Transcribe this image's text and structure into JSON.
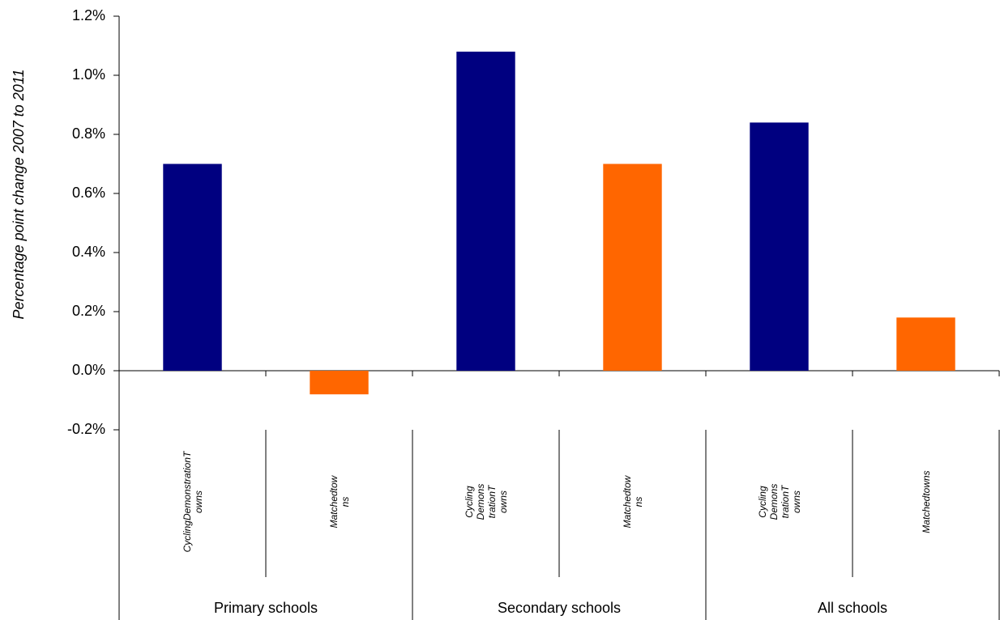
{
  "chart_data": {
    "type": "bar",
    "y_label": "Percentage point change 2007 to 2011",
    "groups": [
      "Primary schools",
      "Secondary schools",
      "All schools"
    ],
    "categories": [
      "CyclingDemonstrationTowns",
      "Matchedtowns",
      "CyclingDemonstrationTowns",
      "Matchedtowns",
      "CyclingDemonstrationTowns",
      "Matchedtowns"
    ],
    "values": [
      0.7,
      -0.08,
      1.08,
      0.7,
      0.84,
      0.18
    ],
    "colors": [
      "#000080",
      "#ff6600",
      "#000080",
      "#ff6600",
      "#000080",
      "#ff6600"
    ],
    "ylim": [
      -0.2,
      1.2
    ],
    "yticks": [
      {
        "value": -0.2,
        "label": "-0.2%"
      },
      {
        "value": 0,
        "label": "0.0%"
      },
      {
        "value": 0.2,
        "label": "0.2%"
      },
      {
        "value": 0.4,
        "label": "0.4%"
      },
      {
        "value": 0.6,
        "label": "0.6%"
      },
      {
        "value": 0.8,
        "label": "0.8%"
      },
      {
        "value": 1.0,
        "label": "1.0%"
      },
      {
        "value": 1.2,
        "label": "1.2%"
      }
    ]
  }
}
